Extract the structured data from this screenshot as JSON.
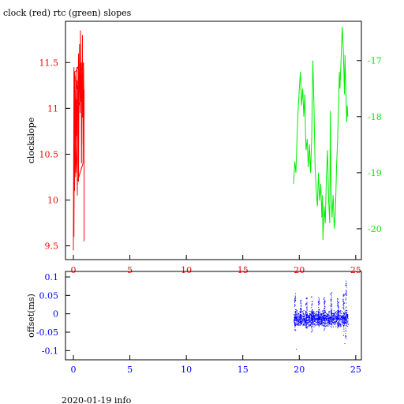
{
  "title": "clock (red) rtc (green) slopes",
  "footer": "2020-01-19 info",
  "colors": {
    "clock": "#ff0000",
    "rtc": "#00ee00",
    "offset": "#0000ff",
    "axes": "#000000"
  },
  "chart_data": [
    {
      "type": "line",
      "name": "slopes",
      "ylabel": "clockslope",
      "xlim": [
        -0.7,
        25.5
      ],
      "ylim_left": [
        9.35,
        11.95
      ],
      "ylim_right": [
        -20.55,
        -16.3
      ],
      "x_ticks": [
        0,
        5,
        10,
        15,
        20,
        25
      ],
      "y_ticks_left": [
        9.5,
        10,
        10.5,
        11,
        11.5
      ],
      "y_ticks_left_labels": [
        "9.5",
        "10",
        "10.5",
        "11",
        "11.5"
      ],
      "y_ticks_right": [
        -20,
        -19,
        -18,
        -17
      ],
      "y_ticks_right_labels": [
        "-20",
        "-19",
        "-18",
        "-17"
      ],
      "x_tick_color": "#ff0000",
      "series": [
        {
          "axis": "left",
          "color": "#ff0000",
          "x": [
            0.0,
            0.02,
            0.05,
            0.05,
            0.1,
            0.1,
            0.12,
            0.15,
            0.2,
            0.2,
            0.25,
            0.3,
            0.3,
            0.35,
            0.4,
            0.4,
            0.45,
            0.45,
            0.5,
            0.5,
            0.55,
            0.6,
            0.62,
            0.65,
            0.7,
            0.72,
            0.75,
            0.75,
            0.8,
            0.8,
            0.85,
            0.85,
            0.9,
            0.9,
            0.95,
            0.95,
            0.95,
            0.9,
            0.8,
            0.6,
            0.4,
            0.2,
            0.1,
            0.3,
            0.5,
            0.7,
            0.9,
            0.95,
            0.7,
            0.4,
            0.15,
            0.1,
            0.35,
            0.6,
            0.85,
            0.9,
            0.6,
            0.3,
            0.05
          ],
          "y": [
            9.45,
            10.3,
            11.45,
            9.6,
            11.4,
            10.1,
            11.2,
            10.25,
            11.3,
            10.3,
            11.1,
            10.7,
            11.45,
            10.05,
            11.3,
            11.0,
            11.6,
            10.2,
            11.4,
            11.05,
            11.7,
            10.95,
            11.85,
            11.1,
            11.5,
            10.4,
            11.35,
            11.0,
            11.8,
            10.9,
            11.5,
            10.6,
            11.5,
            11.2,
            11.2,
            9.55,
            10.9,
            11.45,
            11.4,
            11.5,
            11.45,
            11.4,
            11.4,
            11.2,
            11.3,
            11.25,
            11.2,
            11.0,
            11.1,
            11.0,
            11.05,
            10.95,
            10.2,
            10.3,
            10.4,
            11.45,
            11.25,
            11.3,
            11.3
          ]
        },
        {
          "axis": "right",
          "color": "#00ee00",
          "x": [
            19.5,
            19.6,
            19.7,
            19.8,
            19.9,
            20.0,
            20.1,
            20.2,
            20.3,
            20.4,
            20.5,
            20.55,
            20.6,
            20.7,
            20.8,
            20.9,
            21.0,
            21.05,
            21.1,
            21.2,
            21.3,
            21.4,
            21.5,
            21.6,
            21.7,
            21.8,
            21.9,
            22.0,
            22.05,
            22.1,
            22.2,
            22.3,
            22.4,
            22.5,
            22.6,
            22.7,
            22.75,
            22.8,
            22.9,
            23.0,
            23.1,
            23.2,
            23.3,
            23.4,
            23.5,
            23.55,
            23.6,
            23.7,
            23.8,
            23.9,
            24.0,
            24.05,
            24.1,
            24.2,
            24.25,
            24.3
          ],
          "y": [
            -19.2,
            -18.8,
            -19.0,
            -18.4,
            -17.9,
            -17.5,
            -17.2,
            -17.8,
            -17.5,
            -18.0,
            -17.6,
            -18.3,
            -18.6,
            -18.4,
            -18.9,
            -18.5,
            -19.0,
            -18.7,
            -18.4,
            -17.0,
            -17.8,
            -18.9,
            -19.3,
            -19.6,
            -19.0,
            -19.5,
            -19.2,
            -19.8,
            -19.4,
            -20.2,
            -19.6,
            -19.9,
            -19.1,
            -18.6,
            -19.5,
            -19.9,
            -17.9,
            -19.2,
            -19.8,
            -19.4,
            -20.0,
            -19.7,
            -18.9,
            -18.4,
            -17.6,
            -17.2,
            -17.5,
            -17.0,
            -16.4,
            -16.8,
            -17.6,
            -16.9,
            -17.4,
            -18.1,
            -17.8,
            -18.0
          ]
        }
      ]
    },
    {
      "type": "scatter",
      "name": "offset",
      "ylabel": "offset(ms)",
      "xlim": [
        -0.7,
        25.5
      ],
      "ylim": [
        -0.125,
        0.115
      ],
      "x_ticks": [
        0,
        5,
        10,
        15,
        20,
        25
      ],
      "y_ticks": [
        -0.1,
        -0.05,
        0,
        0.05,
        0.1
      ],
      "y_tick_labels": [
        "-0.1",
        "-0.05",
        "0",
        "0.05",
        "0.1"
      ],
      "x_tick_color": "#0000ff",
      "color": "#0000ff",
      "x_range": [
        19.5,
        24.3
      ],
      "band": [
        -0.012,
        0.012
      ],
      "spikes": [
        {
          "x": 19.6,
          "low": -0.045,
          "high": 0.06
        },
        {
          "x": 20.1,
          "low": -0.03,
          "high": 0.04
        },
        {
          "x": 20.6,
          "low": -0.04,
          "high": 0.045
        },
        {
          "x": 21.1,
          "low": -0.05,
          "high": 0.05
        },
        {
          "x": 21.7,
          "low": -0.035,
          "high": 0.045
        },
        {
          "x": 22.2,
          "low": -0.045,
          "high": 0.05
        },
        {
          "x": 22.8,
          "low": -0.04,
          "high": 0.06
        },
        {
          "x": 23.4,
          "low": -0.04,
          "high": 0.045
        },
        {
          "x": 23.9,
          "low": -0.06,
          "high": 0.055
        },
        {
          "x": 24.1,
          "low": -0.07,
          "high": 0.085
        }
      ],
      "outliers": [
        {
          "x": 19.7,
          "y": -0.095
        },
        {
          "x": 24.1,
          "y": 0.09
        },
        {
          "x": 24.0,
          "y": -0.08
        }
      ]
    }
  ]
}
